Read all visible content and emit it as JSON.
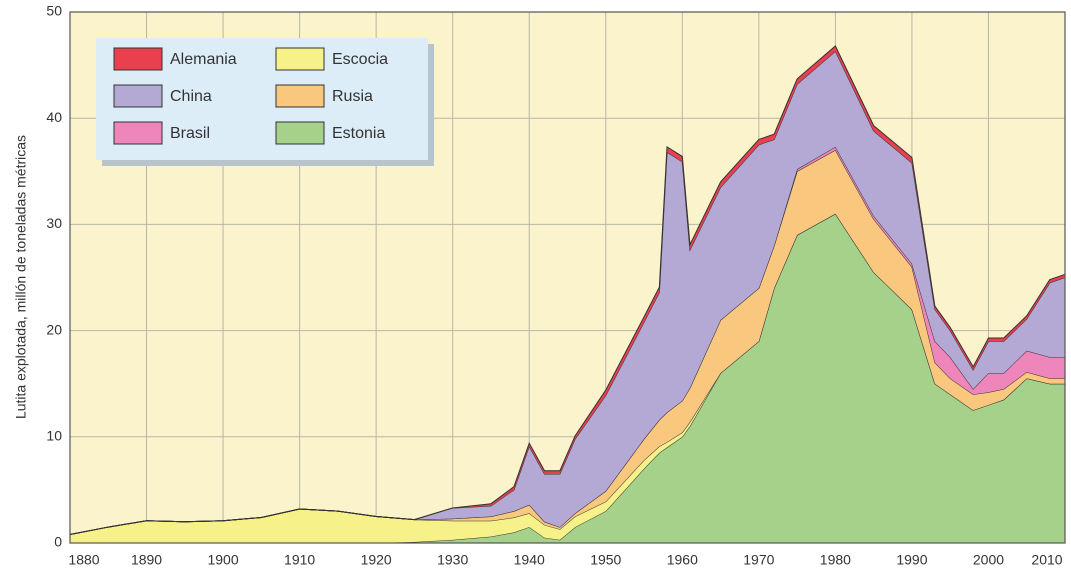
{
  "chart_data": {
    "type": "stacked_area",
    "y_label": "Lutita explotada, millón de toneladas métricas",
    "x": [
      1880,
      1885,
      1890,
      1895,
      1900,
      1905,
      1910,
      1915,
      1920,
      1925,
      1930,
      1935,
      1938,
      1940,
      1942,
      1944,
      1946,
      1950,
      1955,
      1957,
      1958,
      1960,
      1961,
      1965,
      1970,
      1972,
      1975,
      1980,
      1985,
      1990,
      1993,
      1995,
      1998,
      2000,
      2002,
      2005,
      2008,
      2010
    ],
    "series": [
      {
        "name": "Estonia",
        "color": "#a6d18a",
        "values": [
          0,
          0,
          0,
          0,
          0,
          0,
          0,
          0,
          0,
          0.1,
          0.3,
          0.6,
          1.0,
          1.5,
          0.5,
          0.3,
          1.5,
          3.0,
          7,
          8.5,
          9,
          10,
          11,
          16,
          19,
          24,
          29,
          31,
          25.5,
          22,
          15,
          14,
          12.5,
          13,
          13.5,
          15.5,
          15,
          15
        ]
      },
      {
        "name": "Escocia",
        "color": "#f7f18a",
        "values": [
          0.8,
          1.5,
          2.1,
          2.0,
          2.1,
          2.4,
          3.2,
          3.0,
          2.5,
          2.1,
          1.8,
          1.5,
          1.4,
          1.3,
          1.2,
          1.0,
          1.0,
          0.9,
          0.8,
          0.6,
          0.5,
          0.4,
          0.4,
          0,
          0,
          0,
          0,
          0,
          0,
          0,
          0,
          0,
          0,
          0,
          0,
          0,
          0,
          0
        ]
      },
      {
        "name": "Rusia",
        "color": "#f9c77e",
        "values": [
          0,
          0,
          0,
          0,
          0,
          0,
          0,
          0,
          0,
          0,
          0.2,
          0.4,
          0.6,
          0.8,
          0.3,
          0.2,
          0.3,
          1.0,
          2,
          2.5,
          2.8,
          3,
          3.2,
          5,
          5,
          4,
          6,
          6,
          5,
          4,
          2,
          1.5,
          1.5,
          1.2,
          1,
          0.6,
          0.5,
          0.5
        ]
      },
      {
        "name": "Brasil",
        "color": "#ef86bb",
        "values": [
          0,
          0,
          0,
          0,
          0,
          0,
          0,
          0,
          0,
          0,
          0,
          0,
          0,
          0,
          0,
          0,
          0,
          0,
          0,
          0,
          0,
          0,
          0,
          0,
          0,
          0,
          0.2,
          0.3,
          0.3,
          0.3,
          2.0,
          2.0,
          0.5,
          1.8,
          1.5,
          2.0,
          2.0,
          2.0
        ]
      },
      {
        "name": "China",
        "color": "#b4a8d4",
        "values": [
          0,
          0,
          0,
          0,
          0,
          0,
          0,
          0,
          0,
          0,
          1.0,
          1.0,
          2,
          5.5,
          4.5,
          5,
          7,
          9,
          11,
          12,
          24.5,
          22.5,
          13,
          12.5,
          13.5,
          10,
          8,
          9,
          8,
          9.5,
          3,
          2.5,
          1.8,
          3,
          3,
          3,
          7,
          7.5
        ]
      },
      {
        "name": "Alemania",
        "color": "#e8404f",
        "values": [
          0,
          0,
          0,
          0,
          0,
          0,
          0,
          0,
          0,
          0,
          0,
          0.2,
          0.3,
          0.3,
          0.3,
          0.3,
          0.3,
          0.5,
          0.5,
          0.5,
          0.5,
          0.5,
          0.5,
          0.5,
          0.5,
          0.5,
          0.5,
          0.5,
          0.5,
          0.5,
          0.3,
          0.3,
          0.3,
          0.3,
          0.3,
          0.3,
          0.3,
          0.3
        ]
      }
    ],
    "xlim": [
      1880,
      2010
    ],
    "ylim": [
      0,
      50
    ],
    "xticks": [
      1880,
      1890,
      1900,
      1910,
      1920,
      1930,
      1940,
      1950,
      1960,
      1970,
      1980,
      1990,
      2000,
      2010
    ],
    "yticks": [
      0,
      10,
      20,
      30,
      40,
      50
    ],
    "grid": true,
    "legend": "upper left"
  }
}
